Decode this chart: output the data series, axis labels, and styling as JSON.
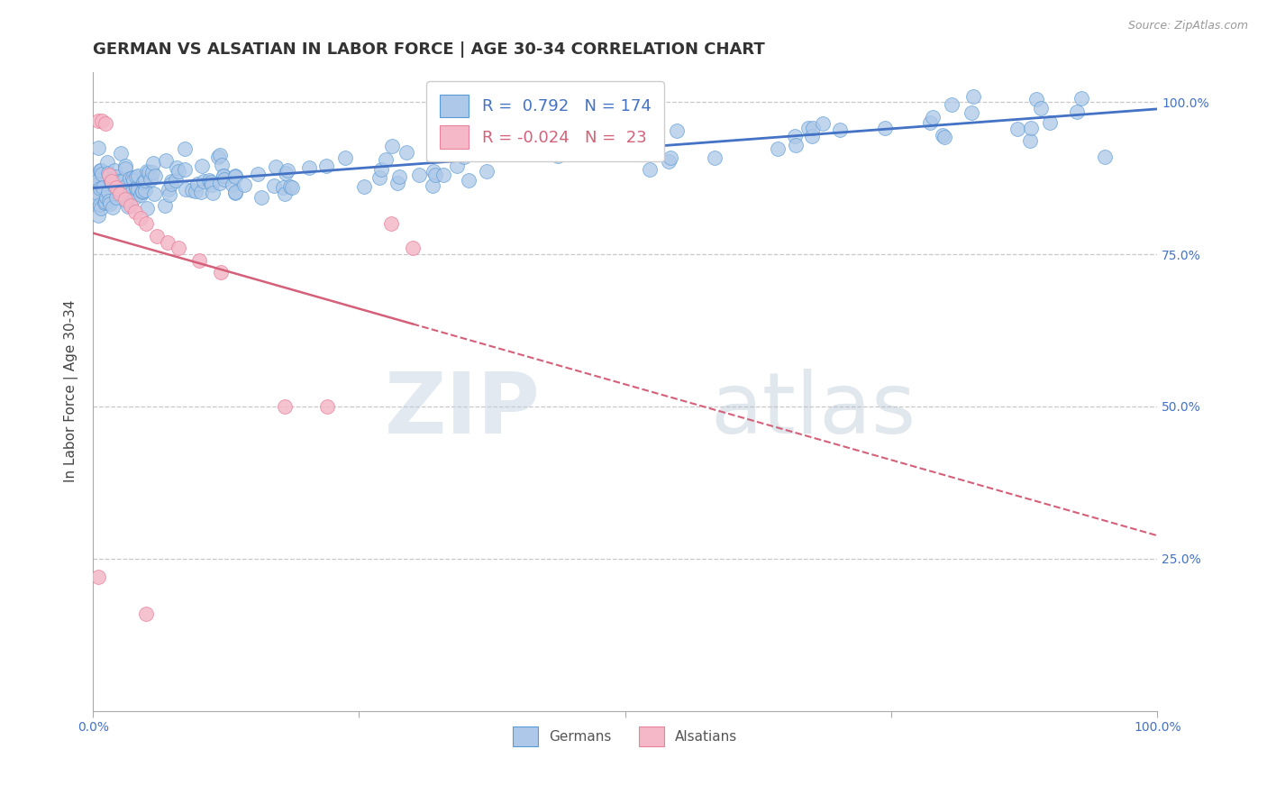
{
  "title": "GERMAN VS ALSATIAN IN LABOR FORCE | AGE 30-34 CORRELATION CHART",
  "source": "Source: ZipAtlas.com",
  "ylabel": "In Labor Force | Age 30-34",
  "xlim": [
    0.0,
    1.0
  ],
  "ylim": [
    0.0,
    1.05
  ],
  "german_R": 0.792,
  "german_N": 174,
  "alsatian_R": -0.024,
  "alsatian_N": 23,
  "blue_color": "#adc8e8",
  "blue_edge_color": "#5b9bd5",
  "blue_line_color": "#4472c4",
  "pink_color": "#f4b8c8",
  "pink_edge_color": "#e8829a",
  "pink_line_color": "#d4607a",
  "background_color": "#ffffff",
  "title_fontsize": 13,
  "axis_label_fontsize": 11,
  "tick_fontsize": 10,
  "legend_blue_color": "#4472c4",
  "legend_pink_color": "#d4607a",
  "watermark_zip_color": "#c8d8e8",
  "watermark_atlas_color": "#b8c8d8",
  "alsatian_x": [
    0.005,
    0.008,
    0.012,
    0.015,
    0.018,
    0.022,
    0.025,
    0.03,
    0.035,
    0.04,
    0.045,
    0.05,
    0.06,
    0.07,
    0.08,
    0.1,
    0.12,
    0.18,
    0.22,
    0.28,
    0.005,
    0.05,
    0.3
  ],
  "alsatian_y": [
    0.97,
    0.97,
    0.965,
    0.88,
    0.87,
    0.86,
    0.85,
    0.84,
    0.83,
    0.82,
    0.81,
    0.8,
    0.78,
    0.77,
    0.76,
    0.74,
    0.72,
    0.5,
    0.5,
    0.8,
    0.22,
    0.16,
    0.76
  ]
}
